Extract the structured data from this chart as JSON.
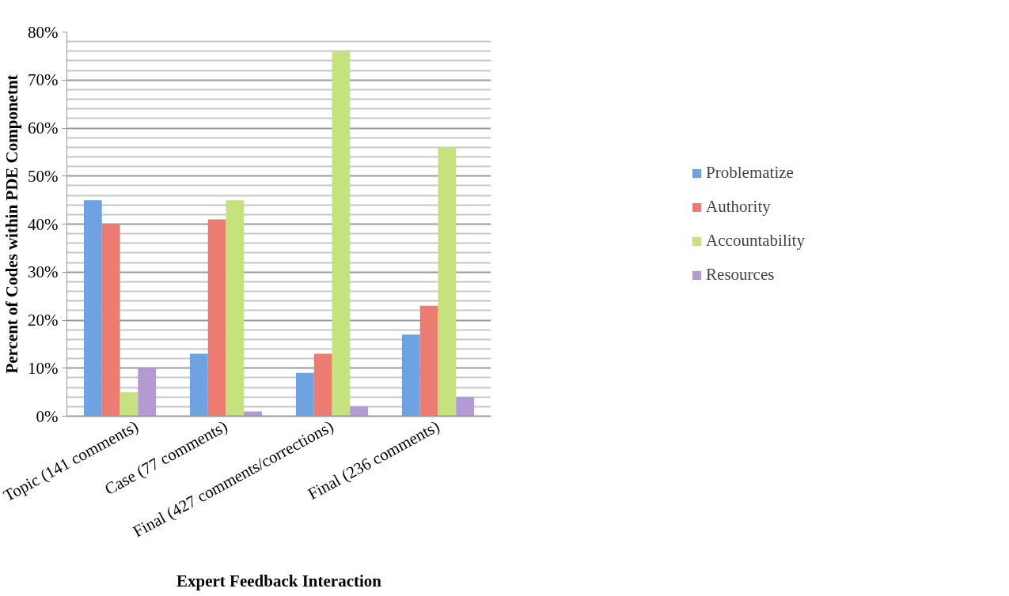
{
  "chart_data": {
    "type": "bar",
    "xlabel": "Expert Feedback Interaction",
    "ylabel": "Percent of Codes within PDE Componetnt",
    "categories": [
      "Topic (141 comments)",
      "Case (77 comments)",
      "Final (427 comments/corrections)",
      "Final (236 comments)"
    ],
    "series": [
      {
        "name": "Problematize",
        "color": "#6fa2e0",
        "values": [
          45,
          13,
          9,
          17
        ]
      },
      {
        "name": "Authority",
        "color": "#ec7c72",
        "values": [
          40,
          41,
          13,
          23
        ]
      },
      {
        "name": "Accountability",
        "color": "#c6e27f",
        "values": [
          5,
          45,
          76,
          56
        ]
      },
      {
        "name": "Resources",
        "color": "#b49ad2",
        "values": [
          10,
          1,
          2,
          4
        ]
      }
    ],
    "ylim": [
      0,
      80
    ],
    "yticks": [
      {
        "value": 0,
        "label": "0%"
      },
      {
        "value": 2,
        "label": null
      },
      {
        "value": 4,
        "label": null
      },
      {
        "value": 6,
        "label": null
      },
      {
        "value": 8,
        "label": null
      },
      {
        "value": 10,
        "label": "10%"
      },
      {
        "value": 12,
        "label": null
      },
      {
        "value": 14,
        "label": null
      },
      {
        "value": 16,
        "label": null
      },
      {
        "value": 18,
        "label": null
      },
      {
        "value": 20,
        "label": "20%"
      },
      {
        "value": 22,
        "label": null
      },
      {
        "value": 24,
        "label": null
      },
      {
        "value": 26,
        "label": null
      },
      {
        "value": 28,
        "label": null
      },
      {
        "value": 30,
        "label": "30%"
      },
      {
        "value": 32,
        "label": null
      },
      {
        "value": 34,
        "label": null
      },
      {
        "value": 36,
        "label": null
      },
      {
        "value": 38,
        "label": null
      },
      {
        "value": 40,
        "label": "40%"
      },
      {
        "value": 42,
        "label": null
      },
      {
        "value": 44,
        "label": null
      },
      {
        "value": 46,
        "label": null
      },
      {
        "value": 48,
        "label": null
      },
      {
        "value": 50,
        "label": "50%"
      },
      {
        "value": 52,
        "label": null
      },
      {
        "value": 54,
        "label": null
      },
      {
        "value": 56,
        "label": null
      },
      {
        "value": 58,
        "label": null
      },
      {
        "value": 60,
        "label": "60%"
      },
      {
        "value": 62,
        "label": null
      },
      {
        "value": 64,
        "label": null
      },
      {
        "value": 66,
        "label": null
      },
      {
        "value": 68,
        "label": null
      },
      {
        "value": 70,
        "label": "70%"
      },
      {
        "value": 72,
        "label": null
      },
      {
        "value": 74,
        "label": null
      },
      {
        "value": 76,
        "label": null
      },
      {
        "value": 78,
        "label": null
      },
      {
        "value": 80,
        "label": "80%"
      }
    ],
    "grid": "y",
    "legend": "right"
  }
}
